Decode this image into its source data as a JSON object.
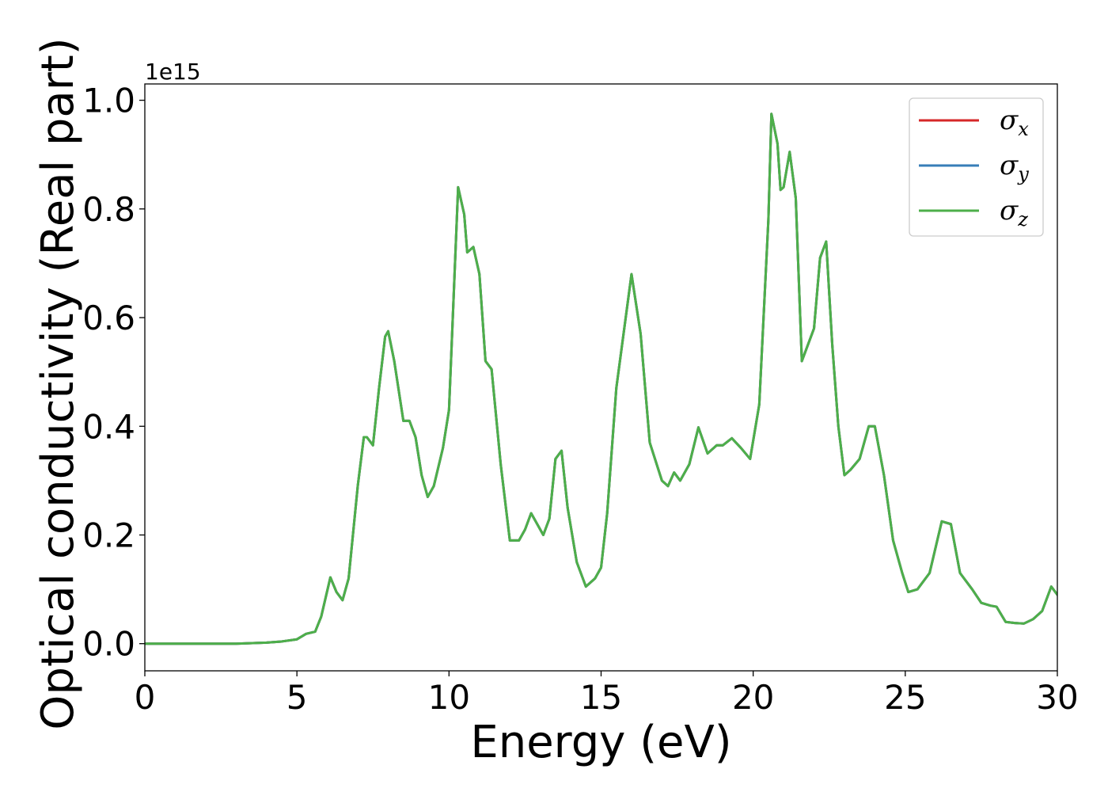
{
  "chart_data": {
    "type": "line",
    "xlabel": "Energy (eV)",
    "ylabel": "Optical conductivity (Real part)",
    "y_offset_label": "1e15",
    "xlim": [
      0,
      30
    ],
    "ylim": [
      -0.05,
      1.03
    ],
    "x_ticks": [
      0,
      5,
      10,
      15,
      20,
      25,
      30
    ],
    "x_tick_labels": [
      "0",
      "5",
      "10",
      "15",
      "20",
      "25",
      "30"
    ],
    "y_ticks": [
      0.0,
      0.2,
      0.4,
      0.6,
      0.8,
      1.0
    ],
    "y_tick_labels": [
      "0.0",
      "0.2",
      "0.4",
      "0.6",
      "0.8",
      "1.0"
    ],
    "grid": false,
    "legend_position": "top-right",
    "x": [
      0,
      3,
      4,
      4.5,
      5,
      5.3,
      5.6,
      5.8,
      6.1,
      6.3,
      6.5,
      6.7,
      7.0,
      7.2,
      7.3,
      7.5,
      7.7,
      7.9,
      8.0,
      8.2,
      8.5,
      8.7,
      8.9,
      9.1,
      9.3,
      9.5,
      9.8,
      10.0,
      10.3,
      10.5,
      10.6,
      10.8,
      11.0,
      11.2,
      11.4,
      11.7,
      12.0,
      12.3,
      12.5,
      12.7,
      12.9,
      13.1,
      13.3,
      13.5,
      13.7,
      13.9,
      14.2,
      14.5,
      14.8,
      15.0,
      15.2,
      15.5,
      16.0,
      16.3,
      16.6,
      17.0,
      17.2,
      17.4,
      17.6,
      17.9,
      18.2,
      18.5,
      18.8,
      19.0,
      19.3,
      19.6,
      19.9,
      20.2,
      20.5,
      20.6,
      20.8,
      20.9,
      21.0,
      21.2,
      21.4,
      21.6,
      21.8,
      22.0,
      22.2,
      22.4,
      22.6,
      22.8,
      23.0,
      23.2,
      23.5,
      23.8,
      24.0,
      24.3,
      24.6,
      24.9,
      25.1,
      25.4,
      25.8,
      26.2,
      26.5,
      26.8,
      27.2,
      27.5,
      27.8,
      28.0,
      28.3,
      28.6,
      28.9,
      29.2,
      29.5,
      29.8,
      30.0
    ],
    "series": [
      {
        "name": "σx",
        "color": "#d62728",
        "values": [
          0.0,
          0.0,
          0.002,
          0.004,
          0.008,
          0.018,
          0.022,
          0.05,
          0.122,
          0.095,
          0.08,
          0.12,
          0.29,
          0.38,
          0.38,
          0.365,
          0.47,
          0.565,
          0.575,
          0.52,
          0.41,
          0.41,
          0.38,
          0.31,
          0.27,
          0.29,
          0.36,
          0.43,
          0.84,
          0.79,
          0.72,
          0.73,
          0.68,
          0.52,
          0.505,
          0.33,
          0.19,
          0.19,
          0.21,
          0.24,
          0.22,
          0.2,
          0.23,
          0.34,
          0.355,
          0.25,
          0.15,
          0.105,
          0.12,
          0.14,
          0.24,
          0.47,
          0.68,
          0.57,
          0.37,
          0.3,
          0.29,
          0.315,
          0.3,
          0.33,
          0.398,
          0.35,
          0.365,
          0.365,
          0.378,
          0.36,
          0.34,
          0.44,
          0.78,
          0.975,
          0.92,
          0.835,
          0.84,
          0.905,
          0.82,
          0.52,
          0.55,
          0.58,
          0.71,
          0.74,
          0.55,
          0.4,
          0.31,
          0.32,
          0.34,
          0.4,
          0.4,
          0.31,
          0.19,
          0.13,
          0.095,
          0.1,
          0.13,
          0.225,
          0.22,
          0.13,
          0.1,
          0.075,
          0.07,
          0.068,
          0.04,
          0.038,
          0.037,
          0.045,
          0.06,
          0.105,
          0.09
        ]
      },
      {
        "name": "σy",
        "color": "#377eb8",
        "values": [
          0.0,
          0.0,
          0.002,
          0.004,
          0.008,
          0.018,
          0.022,
          0.05,
          0.122,
          0.095,
          0.08,
          0.12,
          0.29,
          0.38,
          0.38,
          0.365,
          0.47,
          0.565,
          0.575,
          0.52,
          0.41,
          0.41,
          0.38,
          0.31,
          0.27,
          0.29,
          0.36,
          0.43,
          0.84,
          0.79,
          0.72,
          0.73,
          0.68,
          0.52,
          0.505,
          0.33,
          0.19,
          0.19,
          0.21,
          0.24,
          0.22,
          0.2,
          0.23,
          0.34,
          0.355,
          0.25,
          0.15,
          0.105,
          0.12,
          0.14,
          0.24,
          0.47,
          0.68,
          0.57,
          0.37,
          0.3,
          0.29,
          0.315,
          0.3,
          0.33,
          0.398,
          0.35,
          0.365,
          0.365,
          0.378,
          0.36,
          0.34,
          0.44,
          0.78,
          0.975,
          0.92,
          0.835,
          0.84,
          0.905,
          0.82,
          0.52,
          0.55,
          0.58,
          0.71,
          0.74,
          0.55,
          0.4,
          0.31,
          0.32,
          0.34,
          0.4,
          0.4,
          0.31,
          0.19,
          0.13,
          0.095,
          0.1,
          0.13,
          0.225,
          0.22,
          0.13,
          0.1,
          0.075,
          0.07,
          0.068,
          0.04,
          0.038,
          0.037,
          0.045,
          0.06,
          0.105,
          0.09
        ]
      },
      {
        "name": "σz",
        "color": "#4daf4a",
        "values": [
          0.0,
          0.0,
          0.002,
          0.004,
          0.008,
          0.018,
          0.022,
          0.05,
          0.122,
          0.095,
          0.08,
          0.12,
          0.29,
          0.38,
          0.38,
          0.365,
          0.47,
          0.565,
          0.575,
          0.52,
          0.41,
          0.41,
          0.38,
          0.31,
          0.27,
          0.29,
          0.36,
          0.43,
          0.84,
          0.79,
          0.72,
          0.73,
          0.68,
          0.52,
          0.505,
          0.33,
          0.19,
          0.19,
          0.21,
          0.24,
          0.22,
          0.2,
          0.23,
          0.34,
          0.355,
          0.25,
          0.15,
          0.105,
          0.12,
          0.14,
          0.24,
          0.47,
          0.68,
          0.57,
          0.37,
          0.3,
          0.29,
          0.315,
          0.3,
          0.33,
          0.398,
          0.35,
          0.365,
          0.365,
          0.378,
          0.36,
          0.34,
          0.44,
          0.78,
          0.975,
          0.92,
          0.835,
          0.84,
          0.905,
          0.82,
          0.52,
          0.55,
          0.58,
          0.71,
          0.74,
          0.55,
          0.4,
          0.31,
          0.32,
          0.34,
          0.4,
          0.4,
          0.31,
          0.19,
          0.13,
          0.095,
          0.1,
          0.13,
          0.225,
          0.22,
          0.13,
          0.1,
          0.075,
          0.07,
          0.068,
          0.04,
          0.038,
          0.037,
          0.045,
          0.06,
          0.105,
          0.09
        ]
      }
    ],
    "legend": [
      {
        "symbol": "σ",
        "subscript": "x",
        "color": "#d62728"
      },
      {
        "symbol": "σ",
        "subscript": "y",
        "color": "#377eb8"
      },
      {
        "symbol": "σ",
        "subscript": "z",
        "color": "#4daf4a"
      }
    ]
  }
}
